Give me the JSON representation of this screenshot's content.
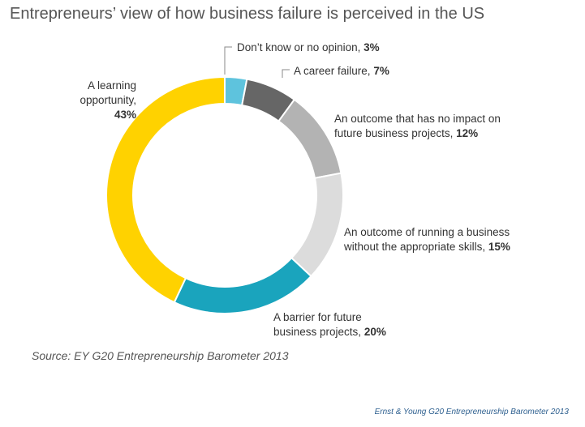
{
  "title": "Entrepreneurs’ view of how business failure is perceived in the US",
  "source": "Source: EY G20 Entrepreneurship Barometer 2013",
  "credit": "Ernst & Young G20 Entrepreneurship Barometer 2013",
  "chart_data": {
    "type": "pie",
    "variant": "donut",
    "unit": "%",
    "slices": [
      {
        "label": "Don’t know or no opinion,",
        "value": 3,
        "value_text": "3%",
        "color": "#5ec3dd"
      },
      {
        "label": "A career failure,",
        "value": 7,
        "value_text": "7%",
        "color": "#666666"
      },
      {
        "label": "An outcome that has no impact on future business projects,",
        "value": 12,
        "value_text": "12%",
        "color": "#b3b3b3"
      },
      {
        "label": "An outcome of running a business without the appropriate skills,",
        "value": 15,
        "value_text": "15%",
        "color": "#dcdcdc"
      },
      {
        "label": "A barrier for future business projects,",
        "value": 20,
        "value_text": "20%",
        "color": "#1aa4bd"
      },
      {
        "label": "A learning opportunity,",
        "value": 43,
        "value_text": "43%",
        "color": "#ffd200"
      }
    ]
  }
}
